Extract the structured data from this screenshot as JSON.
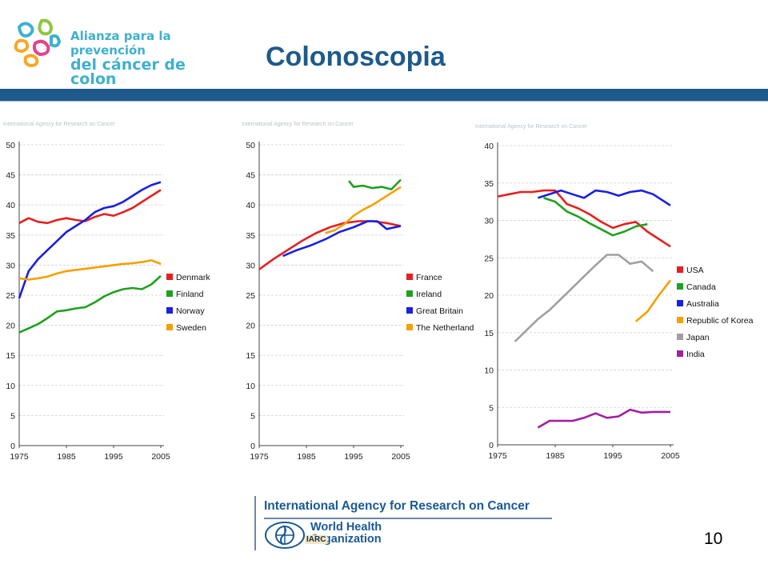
{
  "header": {
    "logo_line1": "Alianza para la prevención",
    "logo_line2": "del cáncer de colon",
    "title": "Colonoscopia"
  },
  "footer": {
    "iarc_name": "International Agency for Research on Cancer",
    "who_name": "World Health Organization",
    "iarc_badge": "IARC",
    "page_number": "10"
  },
  "chart_agency_label": "International Agency for Research on Cancer",
  "chart_data": [
    {
      "type": "line",
      "xlim": [
        1975,
        2005
      ],
      "ylim": [
        0,
        50
      ],
      "x_ticks": [
        1975,
        1985,
        1995,
        2005
      ],
      "y_ticks": [
        0,
        5,
        10,
        15,
        20,
        25,
        30,
        35,
        40,
        45,
        50
      ],
      "grid": true,
      "legend": "right",
      "series": [
        {
          "name": "Denmark",
          "color": "#e62020",
          "x": [
            1975,
            1977,
            1979,
            1981,
            1983,
            1985,
            1987,
            1989,
            1991,
            1993,
            1995,
            1997,
            1999,
            2001,
            2003,
            2005
          ],
          "y": [
            37,
            37.8,
            37.2,
            37,
            37.5,
            37.8,
            37.5,
            37.3,
            38,
            38.5,
            38.2,
            38.8,
            39.5,
            40.5,
            41.5,
            42.5
          ]
        },
        {
          "name": "Finland",
          "color": "#20a020",
          "x": [
            1975,
            1977,
            1979,
            1981,
            1983,
            1985,
            1987,
            1989,
            1991,
            1993,
            1995,
            1997,
            1999,
            2001,
            2003,
            2005
          ],
          "y": [
            18.8,
            19.5,
            20.2,
            21.2,
            22.3,
            22.5,
            22.8,
            23,
            23.8,
            24.8,
            25.5,
            26,
            26.2,
            26,
            26.8,
            28.2
          ]
        },
        {
          "name": "Norway",
          "color": "#1a20e0",
          "x": [
            1975,
            1977,
            1979,
            1981,
            1983,
            1985,
            1987,
            1989,
            1991,
            1993,
            1995,
            1997,
            1999,
            2001,
            2003,
            2005
          ],
          "y": [
            24.5,
            29,
            31,
            32.5,
            34,
            35.5,
            36.5,
            37.5,
            38.8,
            39.5,
            39.8,
            40.5,
            41.5,
            42.5,
            43.3,
            43.8
          ]
        },
        {
          "name": "Sweden",
          "color": "#f5a000",
          "x": [
            1975,
            1977,
            1979,
            1981,
            1983,
            1985,
            1987,
            1989,
            1991,
            1993,
            1995,
            1997,
            1999,
            2001,
            2003,
            2005
          ],
          "y": [
            27.8,
            27.6,
            27.8,
            28.1,
            28.6,
            29,
            29.2,
            29.4,
            29.6,
            29.8,
            30,
            30.2,
            30.3,
            30.5,
            30.8,
            30.2
          ]
        }
      ]
    },
    {
      "type": "line",
      "xlim": [
        1975,
        2005
      ],
      "ylim": [
        0,
        50
      ],
      "x_ticks": [
        1975,
        1985,
        1995,
        2005
      ],
      "y_ticks": [
        0,
        5,
        10,
        15,
        20,
        25,
        30,
        35,
        40,
        45,
        50
      ],
      "grid": true,
      "legend": "right",
      "series": [
        {
          "name": "France",
          "color": "#e62020",
          "x": [
            1975,
            1978,
            1981,
            1984,
            1987,
            1990,
            1993,
            1996,
            1999,
            2002,
            2005
          ],
          "y": [
            29.3,
            31,
            32.5,
            34,
            35.3,
            36.3,
            37,
            37.3,
            37.3,
            37,
            36.5
          ]
        },
        {
          "name": "Ireland",
          "color": "#20a020",
          "x": [
            1994,
            1995,
            1997,
            1999,
            2001,
            2003,
            2005
          ],
          "y": [
            44,
            43,
            43.2,
            42.8,
            43,
            42.6,
            44.2
          ]
        },
        {
          "name": "Great Britain",
          "color": "#1a20e0",
          "x": [
            1980,
            1983,
            1986,
            1989,
            1992,
            1995,
            1998,
            2000,
            2002,
            2005
          ],
          "y": [
            31.5,
            32.5,
            33.3,
            34.3,
            35.5,
            36.3,
            37.3,
            37.3,
            36,
            36.5
          ]
        },
        {
          "name": "The Netherlands",
          "color": "#f5a000",
          "x": [
            1989,
            1991,
            1993,
            1995,
            1997,
            1999,
            2001,
            2003,
            2005
          ],
          "y": [
            35.3,
            35.8,
            36.8,
            38.2,
            39.2,
            40,
            41,
            42,
            43
          ]
        }
      ]
    },
    {
      "type": "line",
      "xlim": [
        1975,
        2005
      ],
      "ylim": [
        0,
        40
      ],
      "x_ticks": [
        1975,
        1985,
        1995,
        2005
      ],
      "y_ticks": [
        0,
        5,
        10,
        15,
        20,
        25,
        30,
        35,
        40
      ],
      "grid": true,
      "legend": "right",
      "series": [
        {
          "name": "USA",
          "color": "#e62020",
          "x": [
            1975,
            1977,
            1979,
            1981,
            1983,
            1985,
            1987,
            1989,
            1991,
            1993,
            1995,
            1997,
            1999,
            2001,
            2003,
            2005
          ],
          "y": [
            33.2,
            33.5,
            33.8,
            33.8,
            34,
            34,
            32.2,
            31.6,
            30.8,
            29.8,
            29,
            29.5,
            29.8,
            28.5,
            27.5,
            26.5
          ]
        },
        {
          "name": "Canada",
          "color": "#20a020",
          "x": [
            1983,
            1985,
            1987,
            1989,
            1991,
            1993,
            1995,
            1997,
            1999,
            2001
          ],
          "y": [
            33,
            32.5,
            31.2,
            30.5,
            29.6,
            28.8,
            28,
            28.5,
            29.2,
            29.5
          ]
        },
        {
          "name": "Australia",
          "color": "#1a20e0",
          "x": [
            1982,
            1984,
            1986,
            1988,
            1990,
            1992,
            1994,
            1996,
            1998,
            2000,
            2002,
            2005
          ],
          "y": [
            33,
            33.5,
            34,
            33.5,
            33,
            34,
            33.8,
            33.3,
            33.8,
            34,
            33.5,
            32
          ]
        },
        {
          "name": "Republic of Korea",
          "color": "#f5a000",
          "x": [
            1999,
            2001,
            2003,
            2005
          ],
          "y": [
            16.5,
            17.8,
            20,
            22
          ]
        },
        {
          "name": "Japan",
          "color": "#a0a0a0",
          "x": [
            1978,
            1980,
            1982,
            1984,
            1986,
            1988,
            1990,
            1992,
            1994,
            1996,
            1998,
            2000,
            2002
          ],
          "y": [
            13.8,
            15.3,
            16.8,
            18,
            19.5,
            21,
            22.5,
            24,
            25.4,
            25.4,
            24.2,
            24.5,
            23.2
          ]
        },
        {
          "name": "India",
          "color": "#a020a0",
          "x": [
            1982,
            1984,
            1986,
            1988,
            1990,
            1992,
            1994,
            1996,
            1998,
            2000,
            2002,
            2005
          ],
          "y": [
            2.3,
            3.2,
            3.2,
            3.2,
            3.6,
            4.2,
            3.6,
            3.8,
            4.7,
            4.3,
            4.4,
            4.4
          ]
        }
      ]
    }
  ]
}
